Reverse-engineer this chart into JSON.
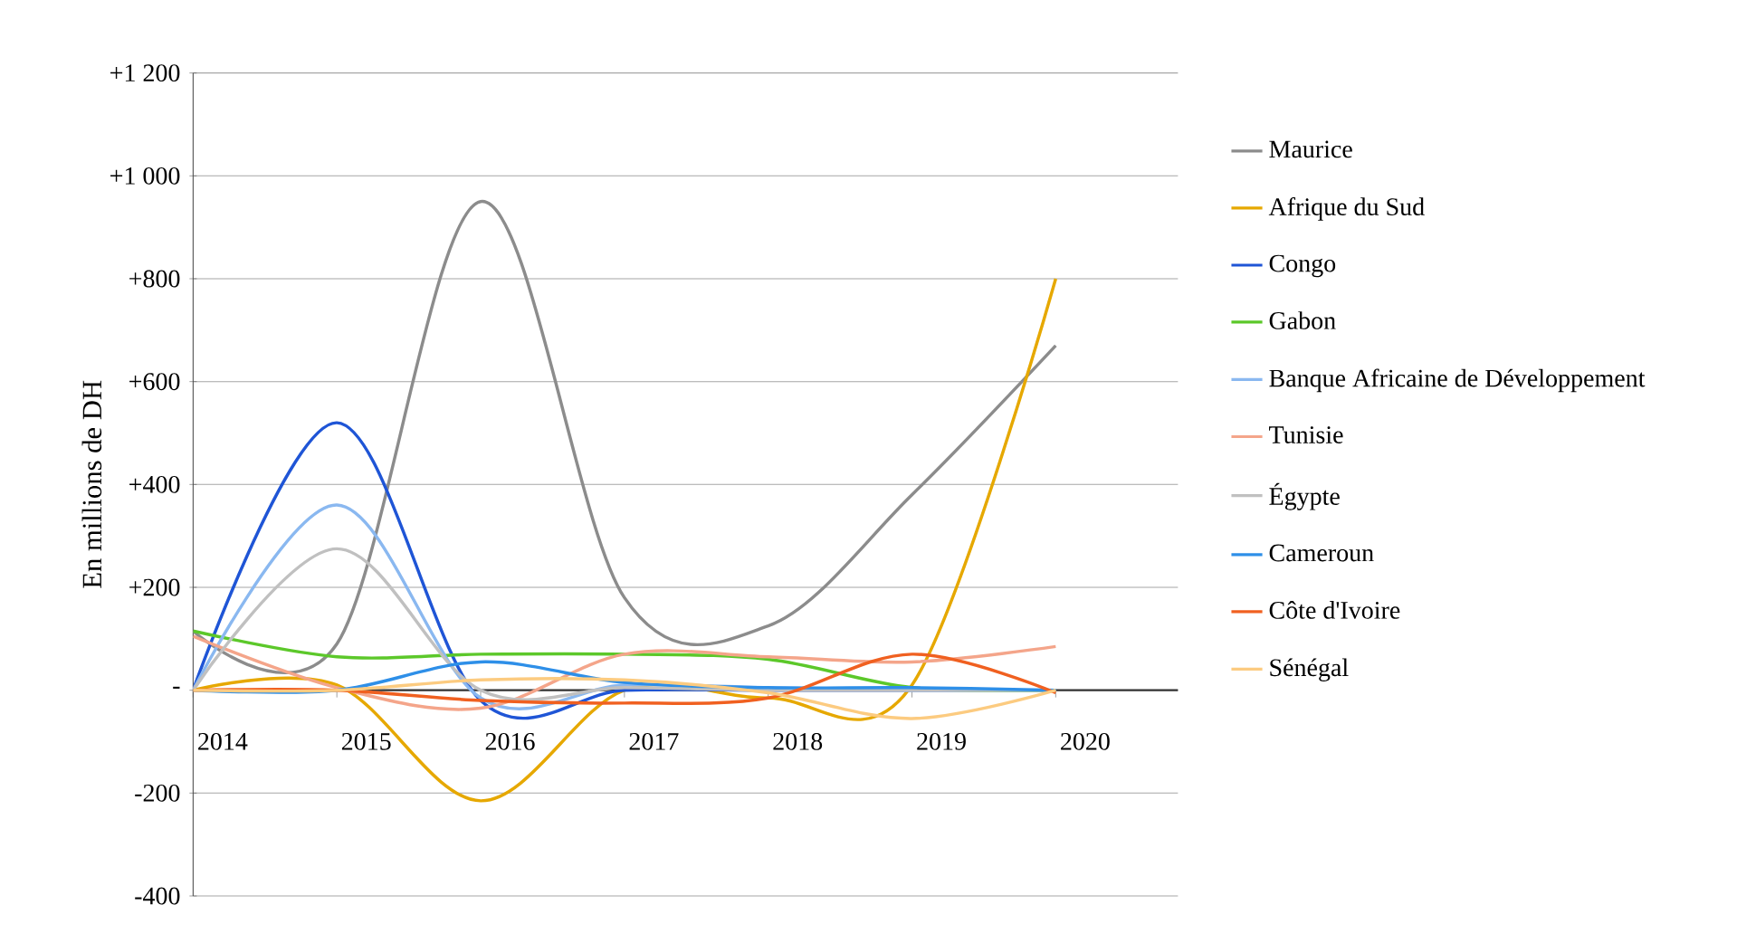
{
  "chart_data": {
    "type": "line",
    "ylabel": "En millions de DH",
    "categories": [
      "2014",
      "2015",
      "2016",
      "2017",
      "2018",
      "2019",
      "2020"
    ],
    "series": [
      {
        "name": "Maurice",
        "color": "#8c8c8c",
        "values": [
          115,
          90,
          950,
          180,
          125,
          380,
          670
        ]
      },
      {
        "name": "Afrique du Sud",
        "color": "#e6a800",
        "values": [
          0,
          10,
          -215,
          0,
          -15,
          10,
          800
        ]
      },
      {
        "name": "Congo",
        "color": "#1f55d6",
        "values": [
          0,
          520,
          -20,
          0,
          0,
          0,
          0
        ]
      },
      {
        "name": "Gabon",
        "color": "#5cc82a",
        "values": [
          115,
          65,
          70,
          70,
          60,
          5,
          0
        ]
      },
      {
        "name": "Banque Africaine de Développement",
        "color": "#8ab8f0",
        "values": [
          0,
          360,
          -15,
          10,
          5,
          0,
          0
        ]
      },
      {
        "name": "Tunisie",
        "color": "#f4a58a",
        "values": [
          105,
          5,
          -35,
          70,
          65,
          55,
          85
        ]
      },
      {
        "name": "Égypte",
        "color": "#c0c0c0",
        "values": [
          0,
          275,
          0,
          5,
          0,
          0,
          0
        ]
      },
      {
        "name": "Cameroun",
        "color": "#2e8fe8",
        "values": [
          0,
          0,
          55,
          15,
          5,
          5,
          0
        ]
      },
      {
        "name": "Côte d'Ivoire",
        "color": "#f06020",
        "values": [
          0,
          0,
          -20,
          -25,
          -15,
          70,
          -5
        ]
      },
      {
        "name": "Sénégal",
        "color": "#fccb80",
        "values": [
          0,
          0,
          20,
          20,
          -5,
          -55,
          0
        ]
      }
    ],
    "ylim": [
      -400,
      1200
    ],
    "yticks": [
      {
        "value": -400,
        "label": "-400"
      },
      {
        "value": -200,
        "label": "-200"
      },
      {
        "value": 0,
        "label": "-"
      },
      {
        "value": 200,
        "label": "+200"
      },
      {
        "value": 400,
        "label": "+400"
      },
      {
        "value": 600,
        "label": "+600"
      },
      {
        "value": 800,
        "label": "+800"
      },
      {
        "value": 1000,
        "label": "+1 000"
      },
      {
        "value": 1200,
        "label": "+1 200"
      }
    ],
    "grid": "y",
    "legend": "right",
    "marker": "none",
    "line_style": "solid"
  }
}
